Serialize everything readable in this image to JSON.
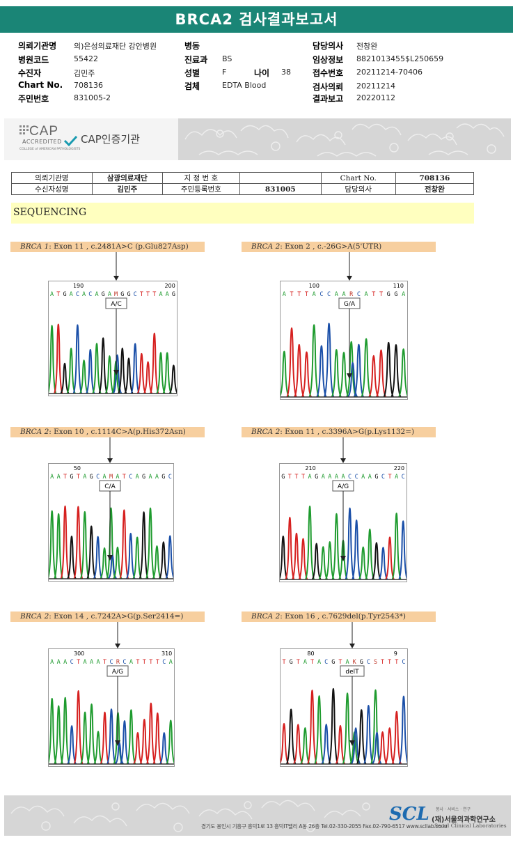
{
  "report": {
    "title": "BRCA2 검사결과보고서"
  },
  "info": {
    "left": [
      {
        "label": "의뢰기관명",
        "value": "의)은성의료재단 강안병원"
      },
      {
        "label": "병원코드",
        "value": "55422"
      },
      {
        "label": "수진자",
        "value": "김민주"
      },
      {
        "label": "Chart No.",
        "value": "708136"
      },
      {
        "label": "주민번호",
        "value": "831005-2"
      }
    ],
    "middle": [
      {
        "label": "병동",
        "value": ""
      },
      {
        "label": "진료과",
        "value": "BS"
      },
      {
        "label": "성별",
        "value": "F"
      },
      {
        "label": "검체",
        "value": "EDTA Blood"
      }
    ],
    "age": {
      "label": "나이",
      "value": "38"
    },
    "right": [
      {
        "label": "담당의사",
        "value": "전창완"
      },
      {
        "label": "임상정보",
        "value": "8821013455$L250659"
      },
      {
        "label": "접수번호",
        "value": "20211214-70406"
      },
      {
        "label": "검사의뢰",
        "value": "20211214"
      },
      {
        "label": "결과보고",
        "value": "20220112"
      }
    ]
  },
  "cap": {
    "big": "CAP",
    "accredited": "ACCREDITED",
    "college": "COLLEGE of AMERICAN PATHOLOGISTS",
    "label": "CAP인증기관"
  },
  "ref_table": {
    "r1": [
      "의뢰기관명",
      "삼광의료재단",
      "지 정 번 호",
      "",
      "Chart No.",
      "708136"
    ],
    "r2": [
      "수신자성명",
      "김민주",
      "주민등록번호",
      "831005",
      "담당의사",
      "전창완"
    ]
  },
  "section": "SEQUENCING",
  "panels": [
    {
      "gene": "BRCA 1",
      "desc": ": Exon 11 , c.2481A>C (p.Glu827Asp)",
      "pos_left": "190",
      "pos_right": "200",
      "seq": "ATGACACAGAMGGCTTTAAG",
      "call": "A/C"
    },
    {
      "gene": "BRCA 2",
      "desc": ": Exon 2 , c.-26G>A(5'UTR)",
      "pos_left": "100",
      "pos_right": "110",
      "seq": "ATTTACCAARCATTGGA",
      "call": "G/A"
    },
    {
      "gene": "BRCA 2",
      "desc": ": Exon 10 , c.1114C>A(p.His372Asn)",
      "pos_left": "50",
      "pos_right": "",
      "seq": "AATGTAGCAMATCAGAAGC",
      "call": "C/A"
    },
    {
      "gene": "BRCA 2",
      "desc": ": Exon 11 , c.3396A>G(p.Lys1132=)",
      "pos_left": "210",
      "pos_right": "220",
      "seq": "GTTTAGAAAACCAAGCTAC",
      "call": "A/G"
    },
    {
      "gene": "BRCA 2",
      "desc": ": Exon 14 , c.7242A>G(p.Ser2414=)",
      "pos_left": "300",
      "pos_right": "310",
      "seq": "AAACTAAATCRCATTTTCA",
      "call": "A/G"
    },
    {
      "gene": "BRCA 2",
      "desc": ": Exon 16 , c.7629del(p.Tyr2543*)",
      "pos_left": "80",
      "pos_right": "9",
      "seq": "TGTATACGTAKGCSTTTC",
      "call": "delT"
    }
  ],
  "footer": {
    "address": "경기도 용인시 기흥구 흥덕1로 13 흥덕IT밸리 A동 26층  Tel.02-330-2055  Fax.02-790-6517  www.scllab.co.kr",
    "logo": "SCL",
    "tagline": "봉사 · 서비스 · 연구",
    "name": "(재)서울의과학연구소",
    "english": "Seoul Clinical Laboratories"
  },
  "colors": {
    "header": "#1a8576",
    "A": "#1e9b2e",
    "C": "#1a4fa8",
    "G": "#111111",
    "T": "#d6201f"
  }
}
